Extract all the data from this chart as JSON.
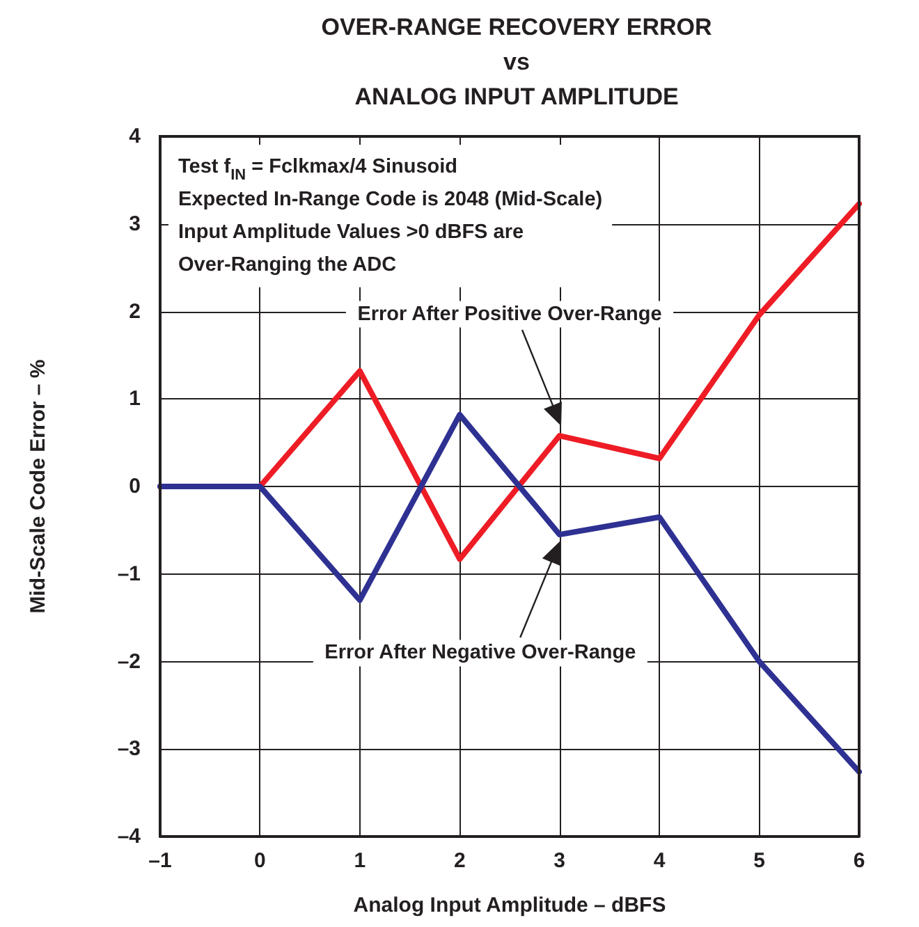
{
  "chart_data": {
    "type": "line",
    "title": "OVER-RANGE RECOVERY ERROR\nvs\nANALOG INPUT AMPLITUDE",
    "xlabel": "Analog Input Amplitude – dBFS",
    "ylabel": "Mid-Scale Code Error – %",
    "x": [
      -1,
      0,
      1,
      2,
      3,
      4,
      5,
      6
    ],
    "series": [
      {
        "name": "Error After Positive Over-Range",
        "color": "#ee1c25",
        "values": [
          0,
          0,
          1.32,
          -0.83,
          0.58,
          0.32,
          1.96,
          3.23
        ]
      },
      {
        "name": "Error After Negative Over-Range",
        "color": "#2e3192",
        "values": [
          0,
          0,
          -1.3,
          0.82,
          -0.55,
          -0.35,
          -2.0,
          -3.26
        ]
      }
    ],
    "xlim": [
      -1,
      6
    ],
    "xticks": [
      {
        "value": -1,
        "label": "–1"
      },
      0,
      1,
      2,
      3,
      4,
      5,
      6
    ],
    "ylim": [
      -4,
      4
    ],
    "yticks": [
      {
        "value": -4,
        "label": "–4"
      },
      {
        "value": -3,
        "label": "–3"
      },
      {
        "value": -2,
        "label": "–2"
      },
      {
        "value": -1,
        "label": "–1"
      },
      0,
      1,
      2,
      3,
      4
    ],
    "annotations": [
      "Test f$_{IN}$ = Fclkmax/4 Sinusoid",
      "Expected In-Range Code is 2048 (Mid-Scale)",
      "Input Amplitude Values >0 dBFS are",
      "Over-Ranging the ADC"
    ],
    "grid": true,
    "legend": false,
    "marker": "none",
    "line_style": "solid"
  }
}
